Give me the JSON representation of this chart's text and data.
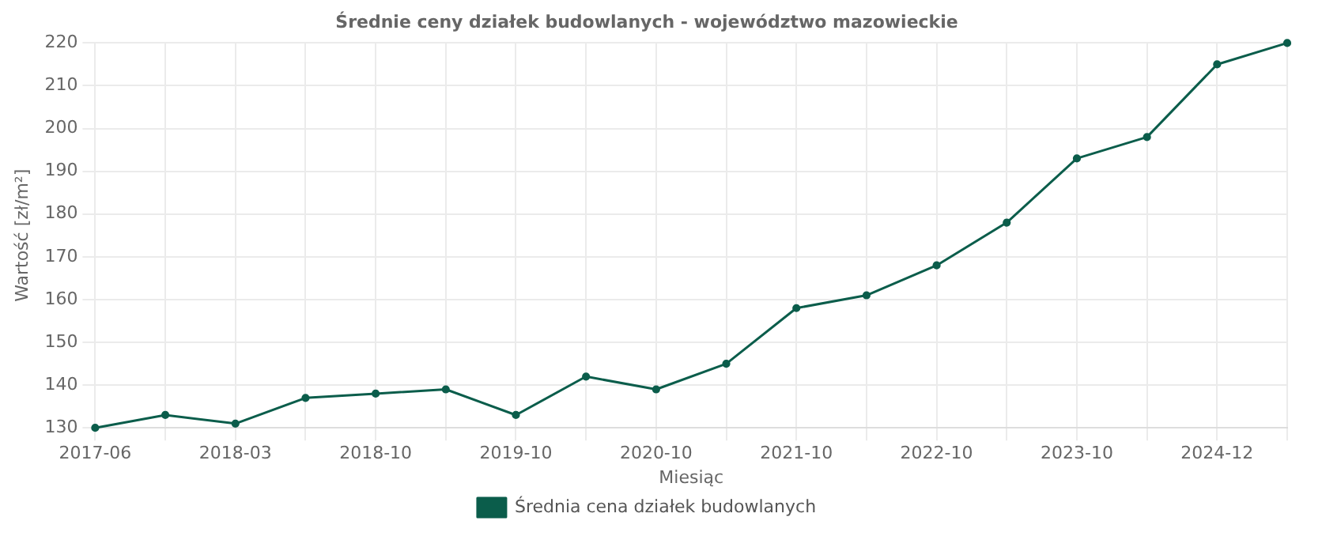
{
  "chart_data": {
    "type": "line",
    "title": "Średnie ceny działek budowlanych - województwo mazowieckie",
    "xlabel": "Miesiąc",
    "ylabel": "Wartość [zł/m²]",
    "categories": [
      "2017-06",
      null,
      "2018-03",
      null,
      "2018-10",
      null,
      "2019-10",
      null,
      "2020-10",
      null,
      "2021-10",
      null,
      "2022-10",
      null,
      "2023-10",
      null,
      "2024-12",
      null
    ],
    "series": [
      {
        "name": "Średnia cena działek budowlanych",
        "color": "#0b5d4b",
        "values": [
          130,
          133,
          131,
          137,
          138,
          139,
          133,
          142,
          139,
          145,
          158,
          161,
          168,
          178,
          193,
          198,
          215,
          220
        ]
      }
    ],
    "ylim": [
      130,
      220
    ],
    "yticks": [
      130,
      140,
      150,
      160,
      170,
      180,
      190,
      200,
      210,
      220
    ],
    "grid": true,
    "legend": "bottom",
    "marker": "circle",
    "line_style": "solid"
  }
}
